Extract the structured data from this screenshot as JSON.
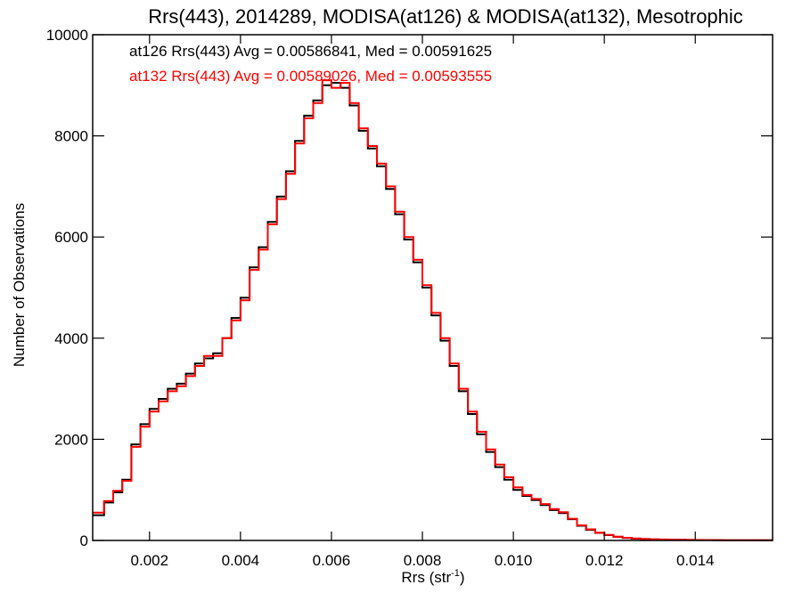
{
  "chart_data": {
    "type": "line",
    "title": "Rrs(443), 2014289, MODISA(at126) & MODISA(at132), Mesotrophic",
    "xlabel": "Rrs (str",
    "xlabel_sup": "-1",
    "xlabel_close": ")",
    "ylabel": "Number of Observations",
    "xlim": [
      0.00075,
      0.0157
    ],
    "ylim": [
      0,
      10000
    ],
    "xticks": [
      0.002,
      0.004,
      0.006,
      0.008,
      0.01,
      0.012,
      0.014
    ],
    "xtick_labels": [
      "0.002",
      "0.004",
      "0.006",
      "0.008",
      "0.010",
      "0.012",
      "0.014"
    ],
    "yticks": [
      0,
      2000,
      4000,
      6000,
      8000,
      10000
    ],
    "ytick_labels": [
      "0",
      "2000",
      "4000",
      "6000",
      "8000",
      "10000"
    ],
    "grid": false,
    "annotations": [
      "at126 Rrs(443) Avg = 0.00586841, Med = 0.00591625",
      "at132 Rrs(443) Avg = 0.00589026, Med = 0.00593555"
    ],
    "series": [
      {
        "name": "at126",
        "color": "#000000",
        "step": "histogram",
        "x": [
          0.00075,
          0.001,
          0.0012,
          0.0014,
          0.0016,
          0.0018,
          0.002,
          0.0022,
          0.0024,
          0.0026,
          0.0028,
          0.003,
          0.0032,
          0.0034,
          0.0036,
          0.0038,
          0.004,
          0.0042,
          0.0044,
          0.0046,
          0.0048,
          0.005,
          0.0052,
          0.0054,
          0.0056,
          0.0058,
          0.006,
          0.0062,
          0.0064,
          0.0066,
          0.0068,
          0.007,
          0.0072,
          0.0074,
          0.0076,
          0.0078,
          0.008,
          0.0082,
          0.0084,
          0.0086,
          0.0088,
          0.009,
          0.0092,
          0.0094,
          0.0096,
          0.0098,
          0.01,
          0.0102,
          0.0104,
          0.0106,
          0.0108,
          0.011,
          0.0112,
          0.0114,
          0.0116,
          0.0118,
          0.012,
          0.0122,
          0.0124,
          0.0126,
          0.0128,
          0.013,
          0.0132,
          0.0134,
          0.0136,
          0.0138,
          0.014,
          0.0142,
          0.0144,
          0.0146,
          0.0148,
          0.015,
          0.0152,
          0.0154,
          0.0157
        ],
        "y": [
          500,
          750,
          950,
          1200,
          1900,
          2300,
          2600,
          2800,
          3000,
          3100,
          3300,
          3500,
          3600,
          3700,
          4000,
          4400,
          4800,
          5400,
          5800,
          6300,
          6800,
          7300,
          7900,
          8400,
          8700,
          9000,
          9050,
          8950,
          8600,
          8100,
          7750,
          7400,
          6950,
          6450,
          5950,
          5500,
          5000,
          4450,
          3950,
          3450,
          2950,
          2500,
          2100,
          1750,
          1450,
          1200,
          1000,
          880,
          800,
          700,
          600,
          540,
          420,
          290,
          210,
          150,
          105,
          72,
          50,
          36,
          28,
          22,
          18,
          15,
          12,
          10,
          9,
          8,
          7,
          6,
          5,
          5,
          4,
          3,
          3
        ]
      },
      {
        "name": "at132",
        "color": "#ff0000",
        "step": "histogram",
        "x": [
          0.00075,
          0.001,
          0.0012,
          0.0014,
          0.0016,
          0.0018,
          0.002,
          0.0022,
          0.0024,
          0.0026,
          0.0028,
          0.003,
          0.0032,
          0.0034,
          0.0036,
          0.0038,
          0.004,
          0.0042,
          0.0044,
          0.0046,
          0.0048,
          0.005,
          0.0052,
          0.0054,
          0.0056,
          0.0058,
          0.006,
          0.0062,
          0.0064,
          0.0066,
          0.0068,
          0.007,
          0.0072,
          0.0074,
          0.0076,
          0.0078,
          0.008,
          0.0082,
          0.0084,
          0.0086,
          0.0088,
          0.009,
          0.0092,
          0.0094,
          0.0096,
          0.0098,
          0.01,
          0.0102,
          0.0104,
          0.0106,
          0.0108,
          0.011,
          0.0112,
          0.0114,
          0.0116,
          0.0118,
          0.012,
          0.0122,
          0.0124,
          0.0126,
          0.0128,
          0.013,
          0.0132,
          0.0134,
          0.0136,
          0.0138,
          0.014,
          0.0142,
          0.0144,
          0.0146,
          0.0148,
          0.015,
          0.0152,
          0.0154,
          0.0157
        ],
        "y": [
          550,
          780,
          980,
          1180,
          1850,
          2250,
          2550,
          2750,
          2950,
          3050,
          3250,
          3450,
          3650,
          3650,
          4000,
          4350,
          4750,
          5350,
          5750,
          6250,
          6750,
          7250,
          7850,
          8350,
          8650,
          9100,
          8950,
          9050,
          8650,
          8150,
          7800,
          7450,
          7000,
          6500,
          6000,
          5550,
          5050,
          4500,
          4000,
          3500,
          3000,
          2550,
          2150,
          1800,
          1500,
          1250,
          1050,
          900,
          820,
          720,
          620,
          560,
          430,
          300,
          220,
          155,
          110,
          75,
          52,
          38,
          29,
          23,
          19,
          16,
          13,
          11,
          9,
          8,
          7,
          6,
          5,
          5,
          4,
          3,
          3
        ]
      }
    ]
  }
}
